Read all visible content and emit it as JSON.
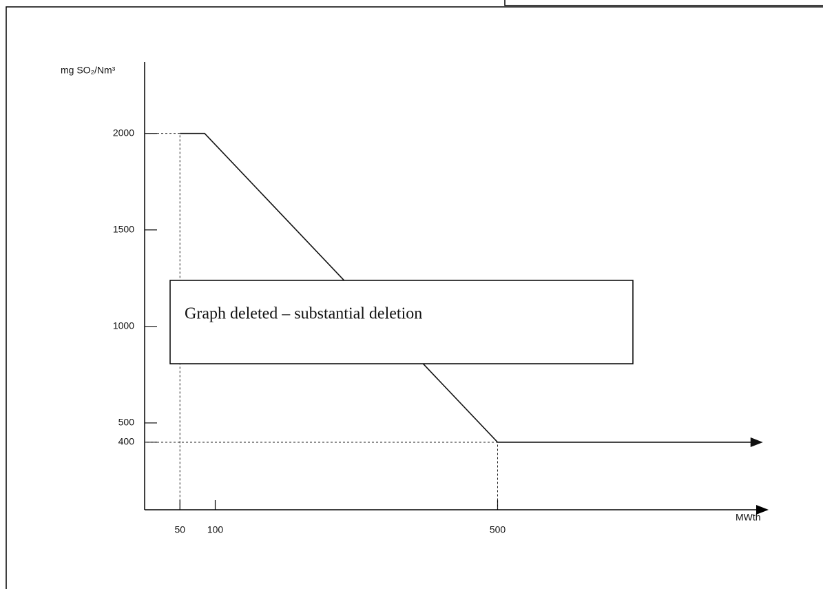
{
  "chart_data": {
    "type": "line",
    "y_label": "mg SO₂/Nm³",
    "x_label": "MWth",
    "annotation": "Graph deleted – substantial deletion",
    "x": [
      50,
      85,
      500,
      870
    ],
    "series": [
      {
        "color": "#111111",
        "values": [
          2000,
          2000,
          400,
          400
        ]
      }
    ],
    "xlim": [
      0,
      880
    ],
    "xticks": [
      50,
      100,
      500
    ],
    "ylim": [
      50,
      2370
    ],
    "yticks": [
      400,
      500,
      1000,
      1500,
      2000
    ]
  }
}
